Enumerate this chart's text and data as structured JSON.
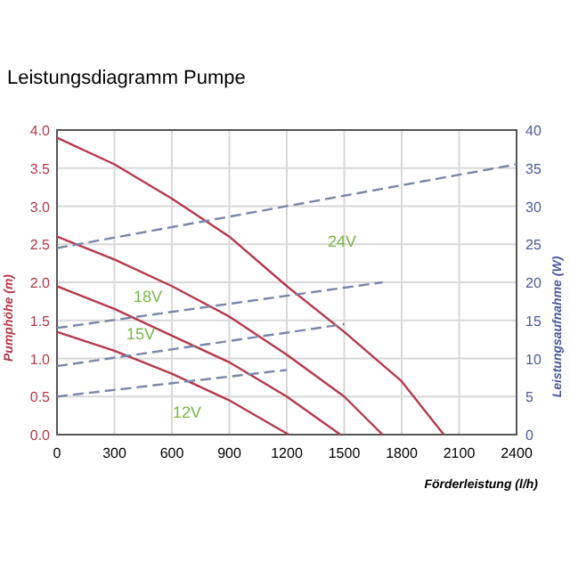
{
  "chart_data": {
    "type": "line",
    "title": "Leistungsdiagramm Pumpe",
    "xlabel": "Förderleistung (l/h)",
    "ylabel": "Pumphöhe (m)",
    "y2label": "Leistungsaufnahme (W)",
    "xlim": [
      0,
      2400
    ],
    "xticks": [
      0,
      300,
      600,
      900,
      1200,
      1500,
      1800,
      2100,
      2400
    ],
    "ylim": [
      0,
      4
    ],
    "yticks": [
      {
        "value": 0,
        "label": "0.0"
      },
      {
        "value": 0.5,
        "label": "0.5"
      },
      {
        "value": 1,
        "label": "1.0"
      },
      {
        "value": 1.5,
        "label": "1.5"
      },
      {
        "value": 2,
        "label": "2.0"
      },
      {
        "value": 2.5,
        "label": "2.5"
      },
      {
        "value": 3,
        "label": "3.0"
      },
      {
        "value": 3.5,
        "label": "3.5"
      },
      {
        "value": 4,
        "label": "4.0"
      }
    ],
    "y2lim": [
      0,
      40
    ],
    "y2ticks": [
      0,
      5,
      10,
      15,
      20,
      25,
      30,
      35,
      40
    ],
    "grid": true,
    "marker": "none",
    "series": [
      {
        "color": "#b5394a",
        "line_style": "solid",
        "x": [
          0,
          300,
          600,
          900,
          1200,
          1500,
          1800,
          2020
        ],
        "values": [
          3.9,
          3.55,
          3.1,
          2.6,
          1.95,
          1.35,
          0.7,
          0
        ]
      },
      {
        "color": "#b5394a",
        "line_style": "solid",
        "x": [
          0,
          300,
          600,
          900,
          1200,
          1500,
          1700
        ],
        "values": [
          2.6,
          2.3,
          1.95,
          1.55,
          1.05,
          0.5,
          0
        ]
      },
      {
        "color": "#b5394a",
        "line_style": "solid",
        "x": [
          0,
          300,
          600,
          900,
          1200,
          1480
        ],
        "values": [
          1.95,
          1.65,
          1.3,
          0.95,
          0.5,
          0
        ]
      },
      {
        "color": "#b5394a",
        "line_style": "solid",
        "x": [
          0,
          300,
          600,
          900,
          1210
        ],
        "values": [
          1.35,
          1.1,
          0.8,
          0.45,
          0
        ]
      },
      {
        "color": "#7a86a8",
        "line_style": "dashed",
        "axis": "y2",
        "x": [
          0,
          2400
        ],
        "values": [
          24.5,
          35.5
        ]
      },
      {
        "color": "#7a86a8",
        "line_style": "dashed",
        "axis": "y2",
        "x": [
          0,
          1700
        ],
        "values": [
          14,
          20
        ]
      },
      {
        "color": "#7a86a8",
        "line_style": "dashed",
        "axis": "y2",
        "x": [
          0,
          1500
        ],
        "values": [
          9,
          14.5
        ]
      },
      {
        "color": "#7a86a8",
        "line_style": "dashed",
        "axis": "y2",
        "x": [
          0,
          1200
        ],
        "values": [
          5,
          8.5
        ]
      }
    ],
    "annotations": [
      "24V",
      "18V",
      "15V",
      "12V"
    ]
  }
}
